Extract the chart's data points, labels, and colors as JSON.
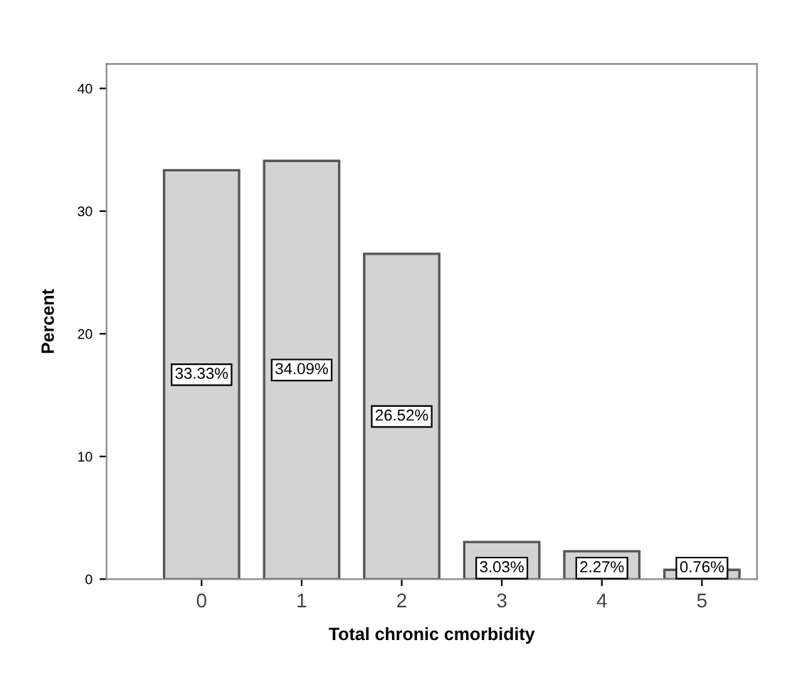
{
  "chart_data": {
    "type": "bar",
    "xlabel": "Total chronic cmorbidity",
    "ylabel": "Percent",
    "categories": [
      "0",
      "1",
      "2",
      "3",
      "4",
      "5"
    ],
    "values": [
      33.33,
      34.09,
      26.52,
      3.03,
      2.27,
      0.76
    ],
    "value_labels": [
      "33.33%",
      "34.09%",
      "26.52%",
      "3.03%",
      "2.27%",
      "0.76%"
    ],
    "color": "#d3d3d3",
    "ylim": [
      0,
      42
    ],
    "yticks": [
      0,
      10,
      20,
      30,
      40
    ],
    "grid": false,
    "legend": false
  }
}
